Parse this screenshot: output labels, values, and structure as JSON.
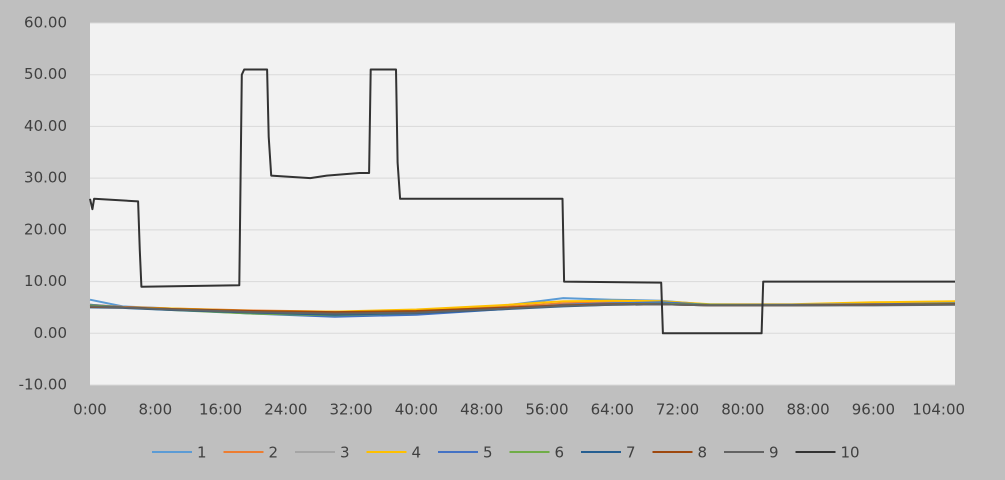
{
  "chart_data": {
    "type": "line",
    "xlim": [
      0,
      106
    ],
    "ylim": [
      -10,
      60
    ],
    "grid": true,
    "xticks": [
      {
        "value": 0,
        "label": "0:00"
      },
      {
        "value": 8,
        "label": "8:00"
      },
      {
        "value": 16,
        "label": "16:00"
      },
      {
        "value": 24,
        "label": "24:00"
      },
      {
        "value": 32,
        "label": "32:00"
      },
      {
        "value": 40,
        "label": "40:00"
      },
      {
        "value": 48,
        "label": "48:00"
      },
      {
        "value": 56,
        "label": "56:00"
      },
      {
        "value": 64,
        "label": "64:00"
      },
      {
        "value": 72,
        "label": "72:00"
      },
      {
        "value": 80,
        "label": "80:00"
      },
      {
        "value": 88,
        "label": "88:00"
      },
      {
        "value": 96,
        "label": "96:00"
      },
      {
        "value": 104,
        "label": "104:00"
      }
    ],
    "yticks": [
      {
        "value": -10,
        "label": "-10.00"
      },
      {
        "value": 0,
        "label": "0.00"
      },
      {
        "value": 10,
        "label": "10.00"
      },
      {
        "value": 20,
        "label": "20.00"
      },
      {
        "value": 30,
        "label": "30.00"
      },
      {
        "value": 40,
        "label": "40.00"
      },
      {
        "value": 50,
        "label": "50.00"
      },
      {
        "value": 60,
        "label": "60.00"
      }
    ],
    "x": [
      0,
      4,
      10,
      20,
      30,
      40,
      50,
      58,
      64,
      70,
      76,
      86,
      96,
      106
    ],
    "series": [
      {
        "name": "1",
        "color": "#5b9bd5",
        "values": [
          6.5,
          5.2,
          4.8,
          4.0,
          3.5,
          4.0,
          5.2,
          6.8,
          6.5,
          6.3,
          5.5,
          5.5,
          5.8,
          6.0
        ]
      },
      {
        "name": "2",
        "color": "#ed7d31",
        "values": [
          5.5,
          5.1,
          4.8,
          4.4,
          4.2,
          4.3,
          5.0,
          5.8,
          6.0,
          6.0,
          5.5,
          5.5,
          5.7,
          5.9
        ]
      },
      {
        "name": "3",
        "color": "#a5a5a5",
        "values": [
          5.3,
          5.0,
          4.7,
          4.2,
          3.9,
          4.1,
          4.8,
          5.5,
          5.8,
          5.9,
          5.5,
          5.5,
          5.6,
          5.8
        ]
      },
      {
        "name": "4",
        "color": "#ffc000",
        "values": [
          5.2,
          5.0,
          4.8,
          4.3,
          4.2,
          4.6,
          5.4,
          6.2,
          6.3,
          6.2,
          5.6,
          5.6,
          6.0,
          6.2
        ]
      },
      {
        "name": "5",
        "color": "#4472c4",
        "values": [
          5.5,
          5.0,
          4.6,
          3.8,
          3.2,
          3.6,
          4.6,
          5.5,
          5.8,
          6.0,
          5.5,
          5.5,
          5.6,
          5.8
        ]
      },
      {
        "name": "6",
        "color": "#70ad47",
        "values": [
          5.4,
          5.0,
          4.5,
          3.8,
          3.5,
          3.9,
          4.8,
          5.4,
          5.6,
          5.7,
          5.5,
          5.4,
          5.5,
          5.7
        ]
      },
      {
        "name": "7",
        "color": "#255e91",
        "values": [
          5.0,
          4.9,
          4.5,
          4.0,
          3.6,
          3.9,
          4.6,
          5.2,
          5.5,
          5.6,
          5.4,
          5.4,
          5.5,
          5.6
        ]
      },
      {
        "name": "8",
        "color": "#9e480e",
        "values": [
          5.1,
          5.0,
          4.7,
          4.3,
          4.1,
          4.3,
          4.9,
          5.4,
          5.6,
          5.6,
          5.4,
          5.4,
          5.5,
          5.6
        ]
      },
      {
        "name": "9",
        "color": "#636363",
        "values": [
          5.2,
          5.0,
          4.6,
          4.1,
          3.8,
          4.0,
          4.7,
          5.3,
          5.5,
          5.6,
          5.4,
          5.4,
          5.4,
          5.5
        ]
      },
      {
        "name": "10",
        "color": "#333333",
        "x": [
          0,
          0.3,
          0.5,
          5.9,
          6.1,
          6.3,
          18.3,
          18.6,
          18.9,
          21.7,
          21.9,
          22.2,
          27,
          29,
          33,
          34.2,
          34.4,
          37.5,
          37.7,
          38,
          57.9,
          58.1,
          70,
          70.2,
          82.3,
          82.5,
          106
        ],
        "values": [
          26,
          24,
          26,
          25.5,
          16,
          9,
          9.3,
          50,
          51,
          51,
          38,
          30.5,
          30,
          30.5,
          31,
          31,
          51,
          51,
          33,
          26,
          26,
          10,
          9.8,
          0,
          0,
          10,
          10
        ]
      }
    ]
  }
}
